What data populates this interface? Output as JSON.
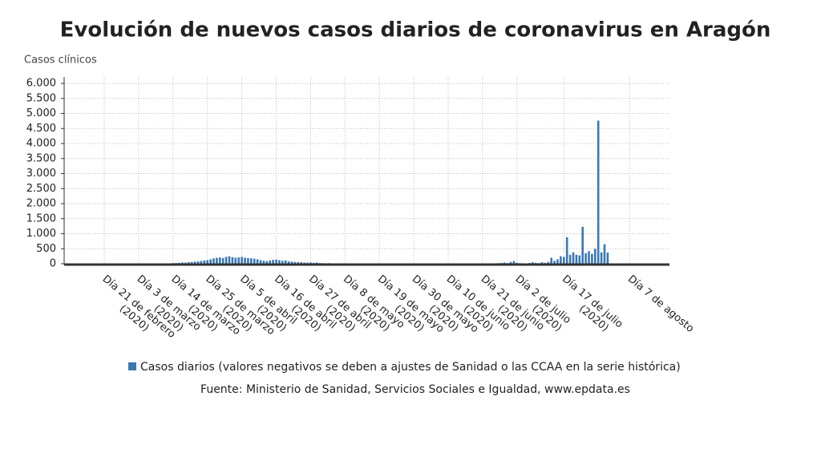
{
  "chart_data": {
    "type": "bar",
    "title": "Evolución de nuevos casos diarios de coronavirus en Aragón",
    "y_label": "Casos clínicos",
    "legend_label": "Casos diarios (valores negativos se deben a ajustes de Sanidad o las CCAA en la serie histórica)",
    "source": "Fuente: Ministerio de Sanidad, Servicios Sociales e Igualdad, www.epdata.es",
    "color": "#3a78b5",
    "grid": true,
    "ylim": [
      0,
      6000
    ],
    "yticks": [
      0,
      500,
      {
        "value": 1000,
        "label": "1.000"
      },
      {
        "value": 1500,
        "label": "1.500"
      },
      {
        "value": 2000,
        "label": "2.000"
      },
      {
        "value": 2500,
        "label": "2.500"
      },
      {
        "value": 3000,
        "label": "3.000"
      },
      {
        "value": 3500,
        "label": "3.500"
      },
      {
        "value": 4000,
        "label": "4.000"
      },
      {
        "value": 4500,
        "label": "4.500"
      },
      {
        "value": 5000,
        "label": "5.000"
      },
      {
        "value": 5500,
        "label": "5.500"
      },
      {
        "value": 6000,
        "label": "6.000"
      }
    ],
    "categories": [
      "Día 21 de febrero (2020)",
      null,
      null,
      null,
      null,
      null,
      null,
      null,
      null,
      null,
      null,
      "Día 3 de marzo (2020)",
      null,
      null,
      null,
      null,
      null,
      null,
      null,
      null,
      null,
      null,
      "Día 14 de marzo (2020)",
      null,
      null,
      null,
      null,
      null,
      null,
      null,
      null,
      null,
      null,
      "Día 25 de marzo (2020)",
      null,
      null,
      null,
      null,
      null,
      null,
      null,
      null,
      null,
      null,
      "Día 5 de abril (2020)",
      null,
      null,
      null,
      null,
      null,
      null,
      null,
      null,
      null,
      null,
      "Día 16 de abril (2020)",
      null,
      null,
      null,
      null,
      null,
      null,
      null,
      null,
      null,
      null,
      "Día 27 de abril (2020)",
      null,
      null,
      null,
      null,
      null,
      null,
      null,
      null,
      null,
      null,
      "Día 8 de mayo (2020)",
      null,
      null,
      null,
      null,
      null,
      null,
      null,
      null,
      null,
      null,
      "Día 19 de mayo (2020)",
      null,
      null,
      null,
      null,
      null,
      null,
      null,
      null,
      null,
      null,
      "Día 30 de mayo (2020)",
      null,
      null,
      null,
      null,
      null,
      null,
      null,
      null,
      null,
      null,
      "Día 10 de junio (2020)",
      null,
      null,
      null,
      null,
      null,
      null,
      null,
      null,
      null,
      null,
      "Día 21 de junio (2020)",
      null,
      null,
      null,
      null,
      null,
      null,
      null,
      null,
      null,
      null,
      "Día 2 de julio (2020)",
      null,
      null,
      null,
      null,
      null,
      null,
      null,
      null,
      null,
      null,
      null,
      null,
      null,
      null,
      "Día 17 de julio (2020)",
      null,
      null,
      null,
      null,
      null,
      null,
      null,
      null,
      null,
      null,
      null,
      null,
      null,
      null,
      null,
      null,
      null,
      null,
      null,
      null,
      "Día 7 de agosto"
    ],
    "values": [
      0,
      0,
      0,
      0,
      0,
      0,
      0,
      0,
      1,
      0,
      0,
      0,
      1,
      2,
      1,
      3,
      2,
      5,
      4,
      8,
      10,
      14,
      20,
      25,
      30,
      45,
      40,
      55,
      60,
      70,
      80,
      95,
      110,
      120,
      150,
      180,
      200,
      210,
      190,
      230,
      250,
      220,
      200,
      210,
      230,
      200,
      190,
      180,
      170,
      150,
      120,
      100,
      90,
      110,
      130,
      140,
      120,
      100,
      110,
      80,
      70,
      60,
      55,
      50,
      40,
      35,
      45,
      30,
      40,
      25,
      20,
      15,
      20,
      12,
      10,
      8,
      15,
      10,
      8,
      6,
      5,
      8,
      6,
      4,
      10,
      7,
      5,
      3,
      6,
      4,
      5,
      3,
      2,
      4,
      3,
      2,
      5,
      3,
      2,
      1,
      2,
      3,
      1,
      2,
      1,
      0,
      2,
      1,
      3,
      2,
      1,
      2,
      1,
      0,
      2,
      3,
      1,
      2,
      4,
      3,
      5,
      8,
      10,
      6,
      12,
      15,
      20,
      30,
      40,
      25,
      60,
      90,
      30,
      20,
      15,
      10,
      25,
      50,
      30,
      20,
      50,
      30,
      60,
      200,
      100,
      150,
      250,
      230,
      880,
      300,
      380,
      300,
      280,
      1230,
      350,
      420,
      330,
      500,
      4760,
      380,
      650,
      370,
      null,
      null,
      null,
      null,
      null,
      null,
      null
    ]
  }
}
